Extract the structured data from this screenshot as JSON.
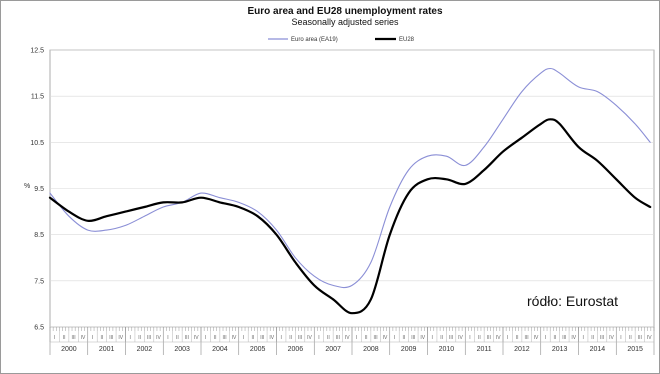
{
  "chart_data": {
    "type": "line",
    "title": "Euro area and EU28 unemployment rates",
    "subtitle": "Seasonally adjusted series",
    "ylabel": "%",
    "ylim": [
      6.5,
      12.5
    ],
    "yticks": [
      "12.5",
      "11.5",
      "10.5",
      "9.5",
      "8.5",
      "7.5",
      "6.5"
    ],
    "ytick_values": [
      12.5,
      11.5,
      10.5,
      9.5,
      8.5,
      7.5,
      6.5
    ],
    "x_start": 2000.0,
    "x_end": 2016.0,
    "years": [
      "2000",
      "2001",
      "2002",
      "2003",
      "2004",
      "2005",
      "2006",
      "2007",
      "2008",
      "2009",
      "2010",
      "2011",
      "2012",
      "2013",
      "2014",
      "2015"
    ],
    "legend_position": "top-center",
    "grid": true,
    "series": [
      {
        "name": "Euro area (EA19)",
        "color": "#8b8fd6",
        "x": [
          2000.0,
          2000.5,
          2001.0,
          2001.5,
          2002.0,
          2002.5,
          2003.0,
          2003.5,
          2004.0,
          2004.5,
          2005.0,
          2005.5,
          2006.0,
          2006.5,
          2007.0,
          2007.5,
          2008.0,
          2008.5,
          2009.0,
          2009.5,
          2010.0,
          2010.5,
          2011.0,
          2011.5,
          2012.0,
          2012.5,
          2013.0,
          2013.25,
          2013.5,
          2014.0,
          2014.5,
          2015.0,
          2015.5,
          2015.9
        ],
        "values": [
          9.4,
          8.9,
          8.6,
          8.6,
          8.7,
          8.9,
          9.1,
          9.2,
          9.4,
          9.3,
          9.2,
          9.0,
          8.6,
          8.0,
          7.6,
          7.4,
          7.4,
          7.9,
          9.1,
          9.9,
          10.2,
          10.2,
          10.0,
          10.4,
          11.0,
          11.6,
          12.0,
          12.1,
          12.0,
          11.7,
          11.6,
          11.3,
          10.9,
          10.5
        ]
      },
      {
        "name": "EU28",
        "color": "#000000",
        "x": [
          2000.0,
          2000.5,
          2001.0,
          2001.5,
          2002.0,
          2002.5,
          2003.0,
          2003.5,
          2004.0,
          2004.5,
          2005.0,
          2005.5,
          2006.0,
          2006.5,
          2007.0,
          2007.5,
          2008.0,
          2008.5,
          2009.0,
          2009.5,
          2010.0,
          2010.5,
          2011.0,
          2011.5,
          2012.0,
          2012.5,
          2013.0,
          2013.25,
          2013.5,
          2014.0,
          2014.5,
          2015.0,
          2015.5,
          2015.9
        ],
        "values": [
          9.3,
          9.0,
          8.8,
          8.9,
          9.0,
          9.1,
          9.2,
          9.2,
          9.3,
          9.2,
          9.1,
          8.9,
          8.5,
          7.9,
          7.4,
          7.1,
          6.8,
          7.1,
          8.5,
          9.4,
          9.7,
          9.7,
          9.6,
          9.9,
          10.3,
          10.6,
          10.9,
          11.0,
          10.9,
          10.4,
          10.1,
          9.7,
          9.3,
          9.1
        ]
      }
    ]
  },
  "source_text": "ródło: Eurostat"
}
